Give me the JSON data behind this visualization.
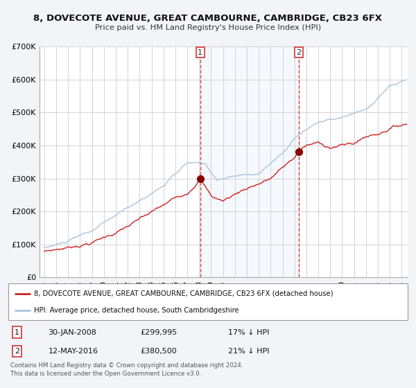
{
  "title": "8, DOVECOTE AVENUE, GREAT CAMBOURNE, CAMBRIDGE, CB23 6FX",
  "subtitle": "Price paid vs. HM Land Registry's House Price Index (HPI)",
  "ylim": [
    0,
    700000
  ],
  "yticks": [
    0,
    100000,
    200000,
    300000,
    400000,
    500000,
    600000,
    700000
  ],
  "ytick_labels": [
    "£0",
    "£100K",
    "£200K",
    "£300K",
    "£400K",
    "£500K",
    "£600K",
    "£700K"
  ],
  "xlim_start": 1994.6,
  "xlim_end": 2025.5,
  "hpi_color": "#a8c4e0",
  "price_color": "#cc2222",
  "background_color": "#f2f4f8",
  "plot_bg_color": "#ffffff",
  "grid_color": "#cccccc",
  "purchase1_date": 2008.08,
  "purchase1_price": 299995,
  "purchase1_label": "1",
  "purchase2_date": 2016.37,
  "purchase2_price": 380500,
  "purchase2_label": "2",
  "legend_address": "8, DOVECOTE AVENUE, GREAT CAMBOURNE, CAMBRIDGE, CB23 6FX (detached house)",
  "legend_hpi": "HPI: Average price, detached house, South Cambridgeshire",
  "footer1": "Contains HM Land Registry data © Crown copyright and database right 2024.",
  "footer2": "This data is licensed under the Open Government Licence v3.0.",
  "table_row1": [
    "1",
    "30-JAN-2008",
    "£299,995",
    "17% ↓ HPI"
  ],
  "table_row2": [
    "2",
    "12-MAY-2016",
    "£380,500",
    "21% ↓ HPI"
  ]
}
